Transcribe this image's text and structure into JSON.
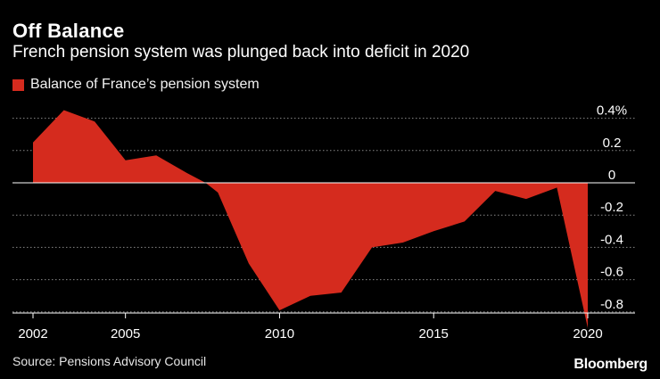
{
  "title": "Off Balance",
  "subtitle": "French pension system was plunged back into deficit in 2020",
  "source": "Source: Pensions Advisory Council",
  "brand": "Bloomberg",
  "colors": {
    "series": "#d52b1e",
    "background": "#000000",
    "gridline": "#888888"
  },
  "chart_data": {
    "type": "area",
    "title": "",
    "legend_position": "top-left",
    "series": [
      {
        "name": "Balance of France’s pension system",
        "x": [
          2002,
          2003,
          2004,
          2005,
          2006,
          2007,
          2007.6,
          2008,
          2009,
          2010,
          2011,
          2012,
          2013,
          2014,
          2015,
          2016,
          2017,
          2018,
          2019,
          2020
        ],
        "values": [
          0.25,
          0.45,
          0.38,
          0.14,
          0.17,
          0.06,
          0.0,
          -0.06,
          -0.5,
          -0.79,
          -0.7,
          -0.68,
          -0.4,
          -0.37,
          -0.3,
          -0.24,
          -0.05,
          -0.1,
          -0.03,
          -0.9
        ]
      }
    ],
    "y_ticks": [
      0.4,
      0.2,
      0,
      -0.2,
      -0.4,
      -0.6,
      -0.8
    ],
    "y_tick_labels": [
      "0.4%",
      "0.2",
      "0",
      "-0.2",
      "-0.4",
      "-0.6",
      "-0.8"
    ],
    "x_ticks": [
      2002,
      2005,
      2010,
      2015,
      2020
    ],
    "x_tick_labels": [
      "2002",
      "2005",
      "2010",
      "2015",
      "2020"
    ],
    "xlim": [
      2002,
      2020
    ],
    "ylim": [
      -0.9,
      0.45
    ],
    "grid": "horizontal dotted"
  }
}
